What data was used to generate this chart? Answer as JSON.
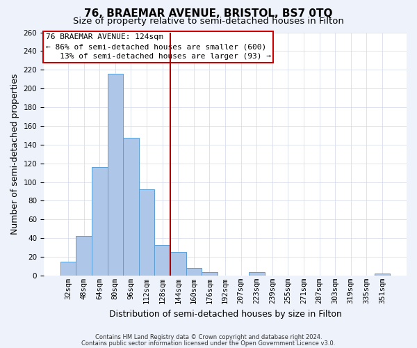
{
  "title": "76, BRAEMAR AVENUE, BRISTOL, BS7 0TQ",
  "subtitle": "Size of property relative to semi-detached houses in Filton",
  "xlabel": "Distribution of semi-detached houses by size in Filton",
  "ylabel": "Number of semi-detached properties",
  "bar_labels": [
    "32sqm",
    "48sqm",
    "64sqm",
    "80sqm",
    "96sqm",
    "112sqm",
    "128sqm",
    "144sqm",
    "160sqm",
    "176sqm",
    "192sqm",
    "207sqm",
    "223sqm",
    "239sqm",
    "255sqm",
    "271sqm",
    "287sqm",
    "303sqm",
    "319sqm",
    "335sqm",
    "351sqm"
  ],
  "bar_values": [
    15,
    42,
    116,
    216,
    147,
    92,
    33,
    25,
    8,
    4,
    0,
    0,
    4,
    0,
    0,
    0,
    0,
    0,
    0,
    0,
    2
  ],
  "bar_color": "#aec6e8",
  "bar_edge_color": "#5a9fd4",
  "vline_index": 6.5,
  "vline_color": "#aa0000",
  "annotation_line1": "76 BRAEMAR AVENUE: 124sqm",
  "annotation_line2": "← 86% of semi-detached houses are smaller (600)",
  "annotation_line3": "   13% of semi-detached houses are larger (93) →",
  "annotation_box_color": "#cc0000",
  "ylim": [
    0,
    260
  ],
  "yticks": [
    0,
    20,
    40,
    60,
    80,
    100,
    120,
    140,
    160,
    180,
    200,
    220,
    240,
    260
  ],
  "footnote1": "Contains HM Land Registry data © Crown copyright and database right 2024.",
  "footnote2": "Contains public sector information licensed under the Open Government Licence v3.0.",
  "bg_color": "#eef2fa",
  "plot_bg_color": "#ffffff",
  "title_fontsize": 11,
  "subtitle_fontsize": 9.5,
  "tick_fontsize": 7.5,
  "ylabel_fontsize": 9,
  "xlabel_fontsize": 9,
  "footnote_fontsize": 6
}
